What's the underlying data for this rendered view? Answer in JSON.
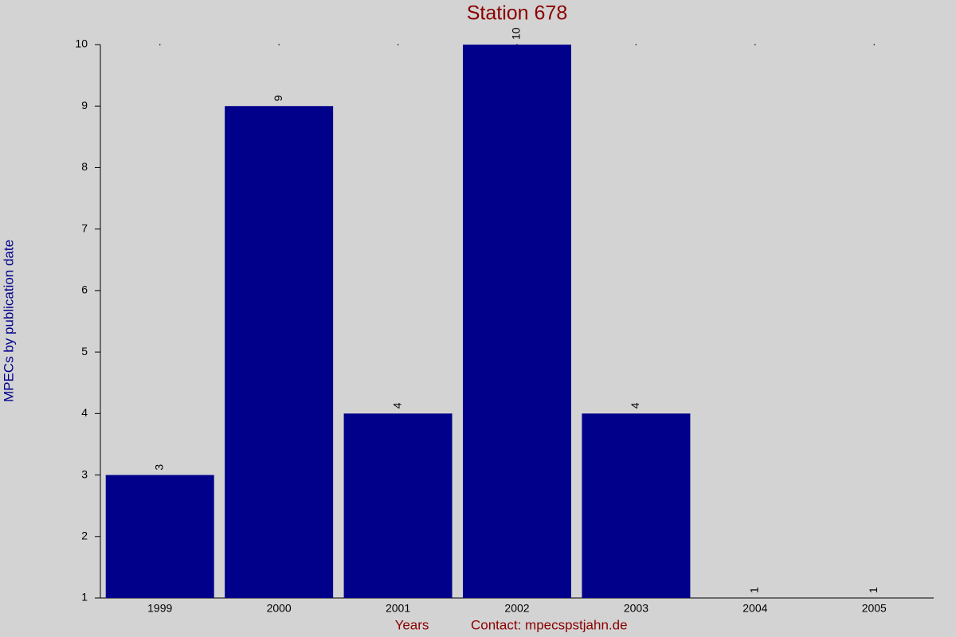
{
  "chart_data": {
    "type": "bar",
    "title": "Station 678",
    "x_label": "Years",
    "y_label": "MPECs by publication date",
    "annotation": "Contact: mpecspstjahn.de",
    "categories": [
      "1999",
      "2000",
      "2001",
      "2002",
      "2003",
      "2004",
      "2005"
    ],
    "values": [
      3,
      9,
      4,
      10,
      4,
      1,
      1
    ],
    "color": "#00008b",
    "ylim": [
      1,
      10
    ],
    "yticks": [
      1,
      2,
      3,
      4,
      5,
      6,
      7,
      8,
      9,
      10
    ],
    "grid": false
  }
}
